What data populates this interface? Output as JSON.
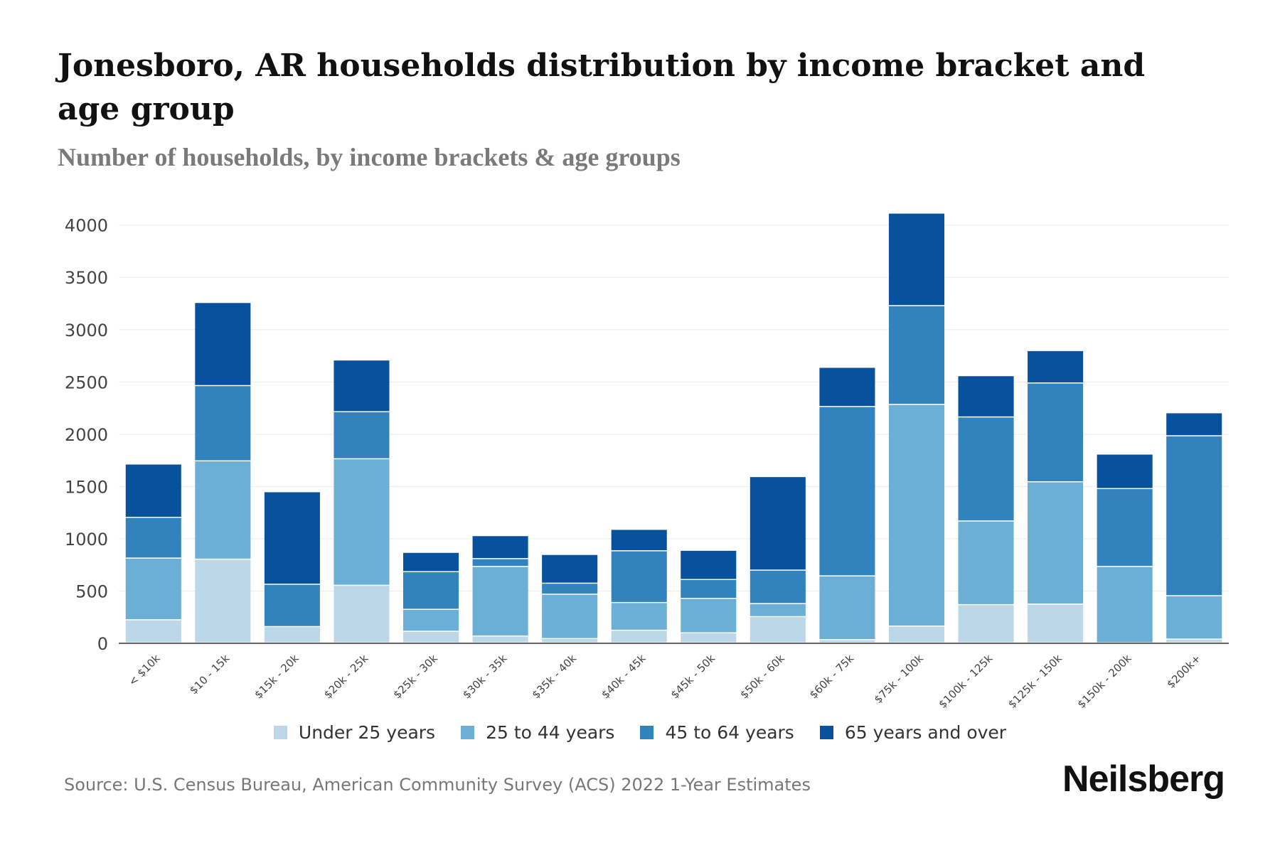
{
  "chart_data": {
    "type": "bar",
    "stacked": true,
    "title": "Jonesboro, AR households distribution by income bracket and age group",
    "subtitle": "Number of households, by income brackets & age groups",
    "xlabel": "",
    "ylabel": "",
    "ylim": [
      0,
      4100
    ],
    "yticks": [
      0,
      500,
      1000,
      1500,
      2000,
      2500,
      3000,
      3500,
      4000
    ],
    "grid": true,
    "legend_position": "bottom",
    "categories": [
      "< $10k",
      "$10 - 15k",
      "$15k - 20k",
      "$20k - 25k",
      "$25k - 30k",
      "$30k - 35k",
      "$35k - 40k",
      "$40k - 45k",
      "$45k - 50k",
      "$50k - 60k",
      "$60k - 75k",
      "$75k - 100k",
      "$100k - 125k",
      "$125k - 150k",
      "$150k - 200k",
      "$200k+"
    ],
    "series": [
      {
        "name": "Under 25 years",
        "color": "#bcd7e8",
        "values": [
          220,
          800,
          155,
          550,
          110,
          65,
          40,
          120,
          95,
          250,
          30,
          160,
          365,
          370,
          0,
          35
        ]
      },
      {
        "name": "25 to 44 years",
        "color": "#6baed6",
        "values": [
          590,
          940,
          0,
          1210,
          210,
          665,
          425,
          265,
          330,
          125,
          610,
          2120,
          800,
          1170,
          730,
          415
        ]
      },
      {
        "name": "45 to 64 years",
        "color": "#3182bd",
        "values": [
          390,
          720,
          405,
          450,
          360,
          75,
          105,
          495,
          180,
          320,
          1620,
          945,
          995,
          945,
          745,
          1530
        ]
      },
      {
        "name": "65 years and over",
        "color": "#08519c",
        "values": [
          510,
          795,
          885,
          495,
          185,
          220,
          275,
          205,
          280,
          895,
          375,
          885,
          395,
          310,
          330,
          220
        ]
      }
    ]
  },
  "footer": {
    "source": "Source: U.S. Census Bureau, American Community Survey (ACS) 2022 1-Year Estimates",
    "brand": "Neilsberg"
  }
}
